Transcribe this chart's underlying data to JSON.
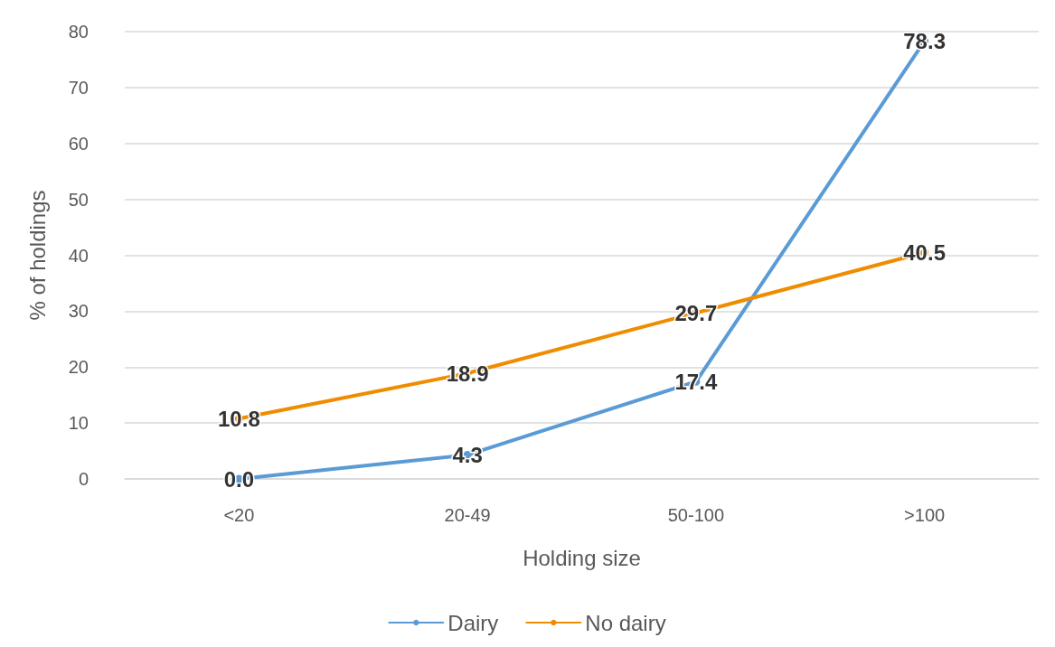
{
  "chart_data": {
    "type": "line",
    "xlabel": "Holding size",
    "ylabel": "% of holdings",
    "categories": [
      "<20",
      "20-49",
      "50-100",
      ">100"
    ],
    "series": [
      {
        "name": "Dairy",
        "color": "#5b9bd5",
        "values": [
          0.0,
          4.3,
          17.4,
          78.3
        ],
        "value_labels": [
          "0.0",
          "4.3",
          "17.4",
          "78.3"
        ]
      },
      {
        "name": "No dairy",
        "color": "#f08c00",
        "values": [
          10.8,
          18.9,
          29.7,
          40.5
        ],
        "value_labels": [
          "10.8",
          "18.9",
          "29.7",
          "40.5"
        ]
      }
    ],
    "ylim": [
      0,
      80
    ],
    "yticks": [
      0,
      10,
      20,
      30,
      40,
      50,
      60,
      70,
      80
    ],
    "grid": "y",
    "legend": "bottom",
    "marker": "circle",
    "line_style": "solid"
  }
}
